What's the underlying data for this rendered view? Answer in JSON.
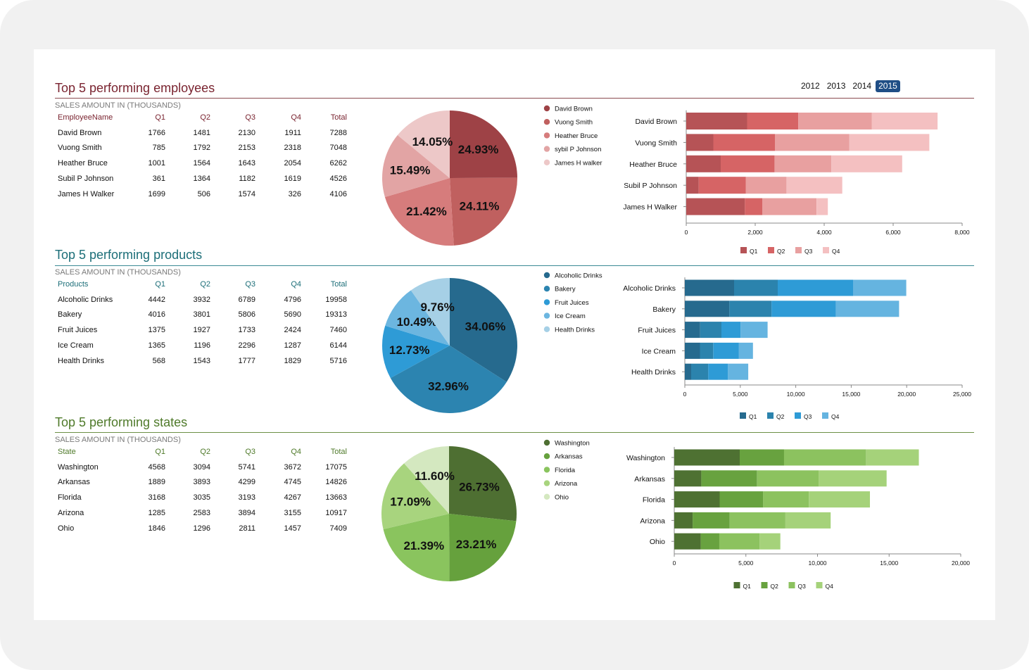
{
  "years": [
    "2012",
    "2013",
    "2014",
    "2015"
  ],
  "active_year": "2015",
  "sections": [
    {
      "id": "employees",
      "title": "Top 5 performing employees",
      "subtitle": "SALES AMOUNT IN (THOUSANDS)",
      "accent": "#7a2430",
      "header": [
        "EmployeeName",
        "Q1",
        "Q2",
        "Q3",
        "Q4",
        "Total"
      ],
      "rows": [
        [
          "David Brown",
          "1766",
          "1481",
          "2130",
          "1911",
          "7288"
        ],
        [
          "Vuong Smith",
          "785",
          "1792",
          "2153",
          "2318",
          "7048"
        ],
        [
          "Heather Bruce",
          "1001",
          "1564",
          "1643",
          "2054",
          "6262"
        ],
        [
          "Subil P Johnson",
          "361",
          "1364",
          "1182",
          "1619",
          "4526"
        ],
        [
          "James H Walker",
          "1699",
          "506",
          "1574",
          "326",
          "4106"
        ]
      ]
    },
    {
      "id": "products",
      "title": "Top 5 performing products",
      "subtitle": "SALES AMOUNT IN (THOUSANDS)",
      "accent": "#1c6e78",
      "header": [
        "Products",
        "Q1",
        "Q2",
        "Q3",
        "Q4",
        "Total"
      ],
      "rows": [
        [
          "Alcoholic Drinks",
          "4442",
          "3932",
          "6789",
          "4796",
          "19958"
        ],
        [
          "Bakery",
          "4016",
          "3801",
          "5806",
          "5690",
          "19313"
        ],
        [
          "Fruit Juices",
          "1375",
          "1927",
          "1733",
          "2424",
          "7460"
        ],
        [
          "Ice Cream",
          "1365",
          "1196",
          "2296",
          "1287",
          "6144"
        ],
        [
          "Health Drinks",
          "568",
          "1543",
          "1777",
          "1829",
          "5716"
        ]
      ]
    },
    {
      "id": "states",
      "title": "Top 5 performing states",
      "subtitle": "SALES AMOUNT IN (THOUSANDS)",
      "accent": "#4f7a2a",
      "header": [
        "State",
        "Q1",
        "Q2",
        "Q3",
        "Q4",
        "Total"
      ],
      "rows": [
        [
          "Washington",
          "4568",
          "3094",
          "5741",
          "3672",
          "17075"
        ],
        [
          "Arkansas",
          "1889",
          "3893",
          "4299",
          "4745",
          "14826"
        ],
        [
          "Florida",
          "3168",
          "3035",
          "3193",
          "4267",
          "13663"
        ],
        [
          "Arizona",
          "1285",
          "2583",
          "3894",
          "3155",
          "10917"
        ],
        [
          "Ohio",
          "1846",
          "1296",
          "2811",
          "1457",
          "7409"
        ]
      ]
    }
  ],
  "chart_data": [
    {
      "type": "pie",
      "categories": [
        "David Brown",
        "Vuong Smith",
        "Heather Bruce",
        "sybil P Johnson",
        "James H walker"
      ],
      "values": [
        24.93,
        24.11,
        21.42,
        15.49,
        14.05
      ],
      "labels": [
        "24.93%",
        "24.11%",
        "21.42%",
        "15.49%",
        "14.05%"
      ],
      "colors": [
        "#9e4246",
        "#c0605f",
        "#d67c7c",
        "#e2a4a4",
        "#edc8c8"
      ],
      "legend": "right"
    },
    {
      "type": "bar",
      "orientation": "horizontal",
      "stacked": true,
      "categories": [
        "David Brown",
        "Vuong Smith",
        "Heather Bruce",
        "Subil P Johnson",
        "James H Walker"
      ],
      "series": [
        {
          "name": "Q1",
          "values": [
            1766,
            785,
            1001,
            361,
            1699
          ],
          "color": "#b65356"
        },
        {
          "name": "Q2",
          "values": [
            1481,
            1792,
            1564,
            1364,
            506
          ],
          "color": "#d66465"
        },
        {
          "name": "Q3",
          "values": [
            2130,
            2153,
            1643,
            1182,
            1574
          ],
          "color": "#e8a0a0"
        },
        {
          "name": "Q4",
          "values": [
            1911,
            2318,
            2054,
            1619,
            326
          ],
          "color": "#f4c0c1"
        }
      ],
      "xlim": [
        0,
        8000
      ],
      "xticks": [
        "0",
        "2,000",
        "4,000",
        "6,000",
        "8,000"
      ],
      "legend": "bottom"
    },
    {
      "type": "pie",
      "categories": [
        "Alcoholic Drinks",
        "Bakery",
        "Fruit Juices",
        "Ice Cream",
        "Health Drinks"
      ],
      "values": [
        34.06,
        32.96,
        12.73,
        10.49,
        9.76
      ],
      "labels": [
        "34.06%",
        "32.96%",
        "12.73%",
        "10.49%",
        "9.76%"
      ],
      "colors": [
        "#266a8e",
        "#2c84b0",
        "#2e9bd6",
        "#6cb6e0",
        "#a6d0e6"
      ],
      "legend": "right"
    },
    {
      "type": "bar",
      "orientation": "horizontal",
      "stacked": true,
      "categories": [
        "Alcoholic Drinks",
        "Bakery",
        "Fruit Juices",
        "Ice Cream",
        "Health Drinks"
      ],
      "series": [
        {
          "name": "Q1",
          "values": [
            4442,
            4016,
            1375,
            1365,
            568
          ],
          "color": "#266a8e"
        },
        {
          "name": "Q2",
          "values": [
            3932,
            3801,
            1927,
            1196,
            1543
          ],
          "color": "#2b83ad"
        },
        {
          "name": "Q3",
          "values": [
            6789,
            5806,
            1733,
            2296,
            1777
          ],
          "color": "#2e9bd6"
        },
        {
          "name": "Q4",
          "values": [
            4796,
            5690,
            2424,
            1287,
            1829
          ],
          "color": "#65b4e0"
        }
      ],
      "xlim": [
        0,
        25000
      ],
      "xticks": [
        "0",
        "5,000",
        "10,000",
        "15,000",
        "20,000",
        "25,000"
      ],
      "legend": "bottom"
    },
    {
      "type": "pie",
      "categories": [
        "Washington",
        "Arkansas",
        "Florida",
        "Arizona",
        "Ohio"
      ],
      "values": [
        26.73,
        23.21,
        21.39,
        17.09,
        11.6
      ],
      "labels": [
        "26.73%",
        "23.21%",
        "21.39%",
        "17.09%",
        "11.60%"
      ],
      "colors": [
        "#4e6f32",
        "#66a13d",
        "#8ac45e",
        "#a8d47e",
        "#d4e8c0"
      ],
      "legend": "right"
    },
    {
      "type": "bar",
      "orientation": "horizontal",
      "stacked": true,
      "categories": [
        "Washington",
        "Arkansas",
        "Florida",
        "Arizona",
        "Ohio"
      ],
      "series": [
        {
          "name": "Q1",
          "values": [
            4568,
            1889,
            3168,
            1285,
            1846
          ],
          "color": "#4e7132"
        },
        {
          "name": "Q2",
          "values": [
            3094,
            3893,
            3035,
            2583,
            1296
          ],
          "color": "#68a23f"
        },
        {
          "name": "Q3",
          "values": [
            5741,
            4299,
            3193,
            3894,
            2811
          ],
          "color": "#8cc25f"
        },
        {
          "name": "Q4",
          "values": [
            3672,
            4745,
            4267,
            3155,
            1457
          ],
          "color": "#a5d27a"
        }
      ],
      "xlim": [
        0,
        20000
      ],
      "xticks": [
        "0",
        "5,000",
        "10,000",
        "15,000",
        "20,000"
      ],
      "legend": "bottom"
    }
  ]
}
